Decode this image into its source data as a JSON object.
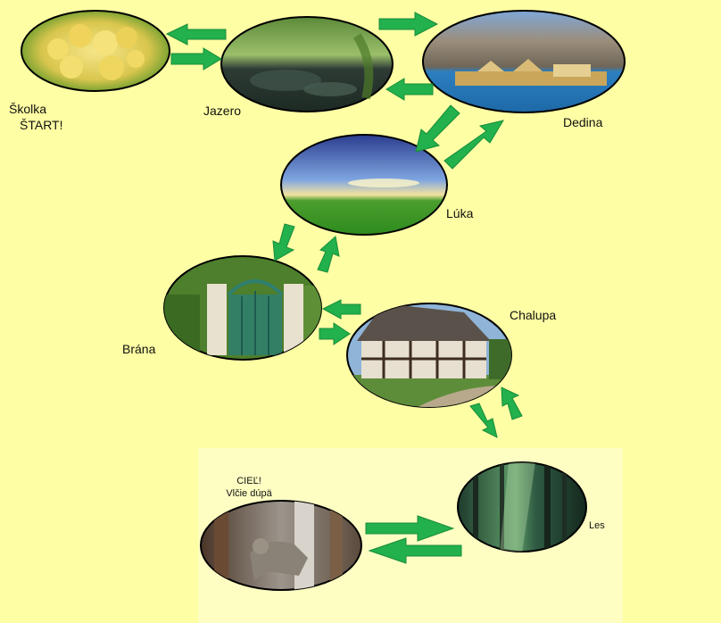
{
  "nodes": {
    "skolka": {
      "line1": "Školka",
      "line2": "ŠTART!"
    },
    "jazero": {
      "label": "Jazero"
    },
    "dedina": {
      "label": "Dedina"
    },
    "luka": {
      "label": "Lúka"
    },
    "brana": {
      "label": "Brána"
    },
    "chalupa": {
      "label": "Chalupa"
    },
    "les": {
      "label": "Les"
    },
    "ciel": {
      "line1": "CIEĽ!",
      "line2": "Vlčie dúpä"
    }
  },
  "colors": {
    "background": "#FEFEA4",
    "arrow": "#22B14C",
    "arrow_light": "#5BD17A",
    "ellipse_border": "#000000"
  },
  "icons": [
    "arrow-right-icon",
    "arrow-left-icon",
    "arrow-up-icon",
    "arrow-down-icon"
  ]
}
